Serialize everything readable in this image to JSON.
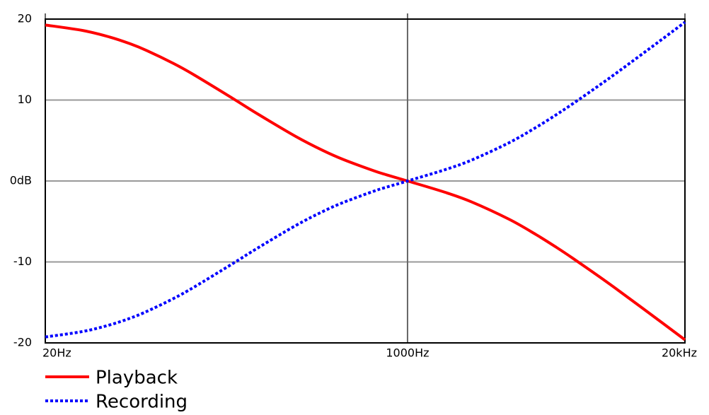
{
  "chart_data": {
    "type": "line",
    "xscale": "log",
    "grid": true,
    "legend": "bottom-left",
    "x": [
      20,
      30,
      40,
      50,
      60,
      80,
      100,
      150,
      200,
      300,
      400,
      500,
      700,
      800,
      1000,
      1500,
      2000,
      3000,
      4000,
      5000,
      6000,
      8000,
      10000,
      15000,
      20000
    ],
    "series": [
      {
        "name": "Playback",
        "color": "#ff0000",
        "linestyle": "solid",
        "values": [
          19.27,
          18.59,
          17.79,
          16.95,
          16.1,
          14.51,
          13.09,
          10.27,
          8.22,
          5.48,
          3.78,
          2.65,
          1.23,
          0.75,
          0,
          -1.4,
          -2.59,
          -4.74,
          -6.61,
          -8.21,
          -9.6,
          -11.89,
          -13.73,
          -17.16,
          -19.62
        ]
      },
      {
        "name": "Recording",
        "color": "#0000ff",
        "linestyle": "dotted",
        "values": [
          -19.27,
          -18.59,
          -17.79,
          -16.95,
          -16.1,
          -14.51,
          -13.09,
          -10.27,
          -8.22,
          -5.48,
          -3.78,
          -2.65,
          -1.23,
          -0.75,
          0,
          1.4,
          2.59,
          4.74,
          6.61,
          8.21,
          9.6,
          11.89,
          13.73,
          17.16,
          19.62
        ]
      }
    ],
    "xlim": [
      20,
      20000
    ],
    "xticks": [
      {
        "value": 20,
        "label": "20Hz"
      },
      {
        "value": 1000,
        "label": "1000Hz"
      },
      {
        "value": 20000,
        "label": "20kHz"
      }
    ],
    "ylim": [
      -20,
      20
    ],
    "yticks": [
      -20,
      -10,
      {
        "value": 0,
        "label": "0dB"
      },
      10,
      20
    ]
  }
}
